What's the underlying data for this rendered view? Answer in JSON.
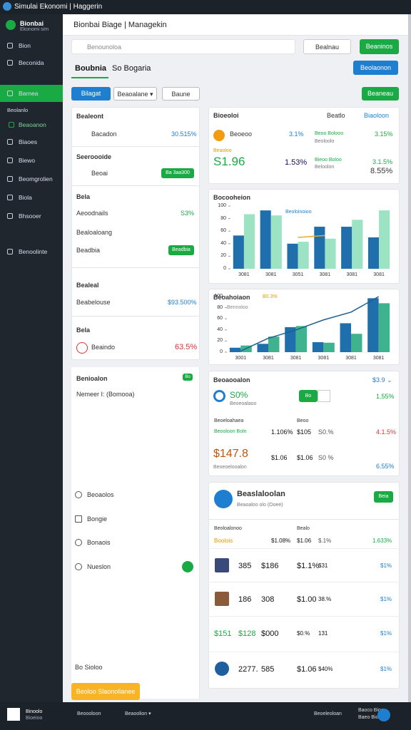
{
  "window": {
    "title": "Simulai Ekonomi | Haggerin"
  },
  "sidebar": {
    "brand": "Bionbai",
    "brand_sub": "Ekonomi sim",
    "items": [
      "Bion",
      "Beconida",
      "Barnea",
      "Beolanlo",
      "Beaoanon",
      "Biaoes",
      "Biewo",
      "Beomgrolien",
      "Biola",
      "Bhsooer",
      "Benoolinte"
    ]
  },
  "header": {
    "title": "Bionbai Biage | Managekin",
    "search": "Benounoloa",
    "search_button": "Bealnau",
    "action_button": "Beaninos"
  },
  "tabs": {
    "items": [
      "Boubnia",
      "So Bogaria"
    ],
    "button": "Beolaonon"
  },
  "toolbar": {
    "primary": "Bilagat",
    "dropdown": "Beaoalane ▾",
    "secondary": "Baune",
    "right": "Beaneau"
  },
  "left_cards": [
    {
      "title": "Bealeont",
      "label": "Bacadon",
      "value": "30.515%"
    },
    {
      "title": "Seeroooide",
      "label": "Beoai",
      "badge": "Ba 3aa300"
    },
    {
      "title": "Bela",
      "rows": [
        "Aeoodnails",
        "Bealoaloang",
        "Beadbia"
      ],
      "value": "S3%",
      "badge": "Beadbia"
    },
    {
      "title": "Bealeal",
      "label": "Beabelouse",
      "value": "$93.500%"
    },
    {
      "title": "Bela",
      "label": "Beaindo",
      "value": "63.5%"
    }
  ],
  "left_panel": {
    "title": "Benioalon",
    "badge": "Bo",
    "subtitle": "Nemeer I: (Bomooa)",
    "options": [
      "Beoaolos",
      "Bongie",
      "Bonaois",
      "Nueslon"
    ],
    "footer": "Bo Sioloo",
    "button": "Beoloo Slaonolianee"
  },
  "summary": {
    "title": "Bioeoloi",
    "links": [
      "Beatlo",
      "Biaoloon"
    ],
    "label": "Beoeoo",
    "sub": "Beaoloo",
    "pct1": "3.1%",
    "col_label": "Beoo Bolooo",
    "col_sub": "Beoloolo",
    "pct2": "3.15%",
    "big": "S1.96",
    "mid": "1.53%",
    "label2": "Bieoo Boloo",
    "label2_sub": "Beloolon",
    "pct3": "3.1.5%",
    "pct4": "8.55%"
  },
  "charts": [
    {
      "type": "bar",
      "title": "Bocooheion",
      "annotation": "Beoloinoioo",
      "categories": [
        "3081",
        "3081",
        "3051",
        "3081",
        "3081",
        "3081"
      ],
      "ylim": [
        0,
        100
      ],
      "yticks": [
        0,
        20,
        40,
        60,
        80,
        100
      ],
      "series": [
        {
          "color": "#1f6fad",
          "values": [
            53,
            93,
            40,
            67,
            67,
            50
          ]
        },
        {
          "color": "#9be3c3",
          "values": [
            87,
            85,
            43,
            48,
            78,
            93
          ]
        },
        {
          "color": "#e9a92a",
          "type": "line",
          "values": [
            null,
            null,
            50,
            53,
            null,
            null
          ]
        }
      ]
    },
    {
      "type": "bar",
      "title": "Beoahoiaon",
      "annotation": "B0.3%",
      "subtitle": "Bennoloo",
      "categories": [
        "3001",
        "3081",
        "3081",
        "3081",
        "3081",
        "3081"
      ],
      "ylim": [
        0,
        100
      ],
      "yticks": [
        0,
        20,
        40,
        60,
        80,
        100
      ],
      "series": [
        {
          "color": "#1f6fad",
          "values": [
            8,
            15,
            45,
            18,
            52,
            97
          ]
        },
        {
          "color": "#3fb38e",
          "values": [
            12,
            28,
            47,
            17,
            33,
            88
          ]
        },
        {
          "color": "#1f5f8f",
          "type": "line",
          "values": [
            2,
            25,
            40,
            58,
            72,
            100
          ]
        }
      ]
    }
  ],
  "stats": {
    "title": "Beoaooalon",
    "corner": "$3.9 ⌄",
    "pct": "S0%",
    "pct_sub": "Beoeoalaoo",
    "toggle": "Bo",
    "pct2": "1.55%",
    "row_label": "Beoeloahaea",
    "row_label2": "Beooloon Boln",
    "row_head": "Beoo",
    "vals": [
      "1.106%",
      "$105",
      "S0.%",
      "4.1.5%"
    ],
    "big": "$147.8",
    "big_sub": "Beoeoelooalon",
    "vals2": [
      "$1.06",
      "$1.06",
      "S0 %",
      "6.55%"
    ]
  },
  "table": {
    "title": "Beaslaloolan",
    "subtitle": "Beaoaloo olo (Ooee)",
    "button": "Beia",
    "head": [
      "Beoloalonoo",
      "Bealo"
    ],
    "first": [
      "Boolois",
      "$1.08%",
      "$1.06",
      "$.1%",
      "1.633%"
    ],
    "rows": [
      [
        "385",
        "$186",
        "$1.1%",
        "$31",
        "$1%"
      ],
      [
        "186",
        "308",
        "$1.00",
        "38.%",
        "$1%"
      ],
      [
        "$151",
        "$128",
        "$000",
        "$0.%",
        "131",
        "$1%"
      ],
      [
        "2277.",
        "585",
        "$1.06",
        "$40%",
        "$1%"
      ]
    ]
  },
  "taskbar": {
    "app": "Binoolo",
    "app_sub": "Bioeioo",
    "items": [
      "Beoooloon",
      "Beaoolion ▾",
      "Beoeleoloan",
      "Baoco Bioo",
      "Baeo Bio"
    ]
  }
}
